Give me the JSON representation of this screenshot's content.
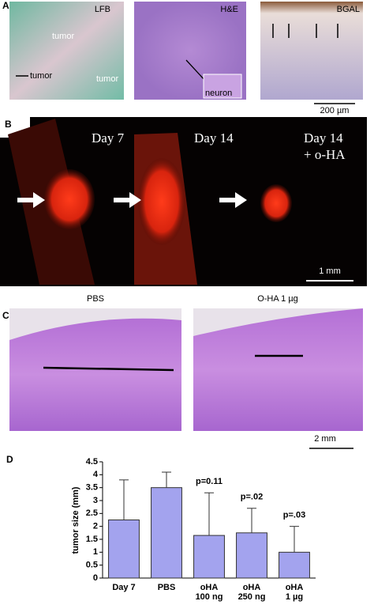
{
  "panel_a": {
    "label": "A",
    "images": [
      {
        "stain": "LFB",
        "labels": [
          "tumor",
          "tumor",
          "tumor"
        ]
      },
      {
        "stain": "H&E",
        "labels": [
          "neuron"
        ]
      },
      {
        "stain": "BGAL",
        "labels": []
      }
    ],
    "scale_bar": "200 µm"
  },
  "panel_b": {
    "label": "B",
    "captions": [
      "Day 7",
      "Day 14",
      "Day 14",
      "+ o-HA"
    ],
    "scale_bar": "1 mm"
  },
  "panel_c": {
    "label": "C",
    "captions": [
      "PBS",
      "O-HA 1 µg"
    ],
    "scale_bar": "2 mm"
  },
  "panel_d": {
    "label": "D"
  },
  "chart_data": {
    "type": "bar",
    "y_label": "tumor size (mm)",
    "categories": [
      [
        "Day 7"
      ],
      [
        "PBS"
      ],
      [
        "oHA",
        "100 ng"
      ],
      [
        "oHA",
        "250 ng"
      ],
      [
        "oHA",
        "1 µg"
      ]
    ],
    "values": [
      2.25,
      3.5,
      1.65,
      1.75,
      1.0
    ],
    "errors": [
      1.55,
      0.6,
      1.65,
      0.95,
      1.0
    ],
    "annotations": [
      "p=0.11",
      "p=.02",
      "p=.03"
    ],
    "color": "#a3a3ee",
    "ylim": [
      0,
      4.5
    ],
    "yticks": [
      0,
      0.5,
      1,
      1.5,
      2,
      2.5,
      3,
      3.5,
      4,
      4.5
    ]
  }
}
